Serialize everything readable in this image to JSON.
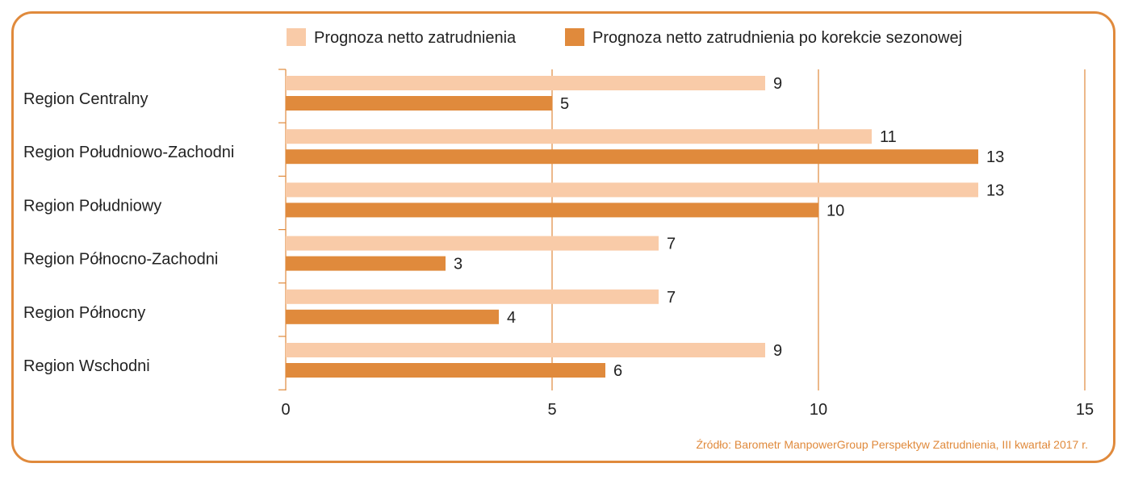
{
  "chart_data": {
    "type": "bar",
    "orientation": "horizontal",
    "categories": [
      "Region Centralny",
      "Region Południowo-Zachodni",
      "Region Południowy",
      "Region Północno-Zachodni",
      "Region Północny",
      "Region Wschodni"
    ],
    "series": [
      {
        "name": "Prognoza netto zatrudnienia",
        "values": [
          9,
          11,
          13,
          7,
          7,
          9
        ],
        "color": "#f9cba8"
      },
      {
        "name": "Prognoza netto zatrudnienia po korekcie sezonowej",
        "values": [
          5,
          13,
          10,
          3,
          4,
          6
        ],
        "color": "#e08a3c"
      }
    ],
    "xlim": [
      0,
      15
    ],
    "xticks": [
      0,
      5,
      10,
      15
    ],
    "grid": true,
    "legend": "top",
    "axis_color": "#e08a3c"
  },
  "source_note": "Źródło: Barometr ManpowerGroup Perspektyw Zatrudnienia, III kwartał 2017 r."
}
